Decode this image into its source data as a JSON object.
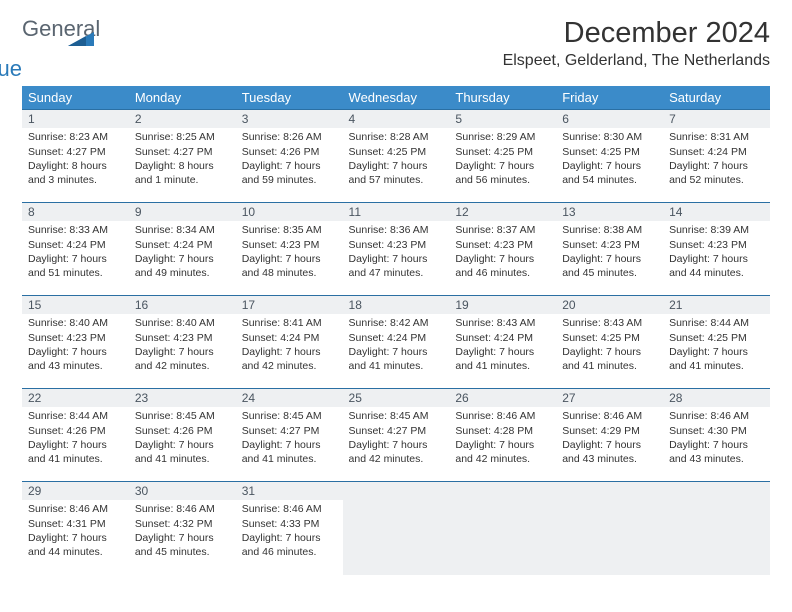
{
  "logo": {
    "word1": "General",
    "word2": "Blue"
  },
  "title": "December 2024",
  "location": "Elspeet, Gelderland, The Netherlands",
  "colors": {
    "header_bg": "#3b8bc9",
    "header_text": "#ffffff",
    "daynum_bg": "#eef0f2",
    "border": "#2a6fa3",
    "logo_gray": "#5a6570",
    "logo_blue": "#2a7ab9"
  },
  "weekdays": [
    "Sunday",
    "Monday",
    "Tuesday",
    "Wednesday",
    "Thursday",
    "Friday",
    "Saturday"
  ],
  "weeks": [
    [
      {
        "n": "1",
        "sunrise": "Sunrise: 8:23 AM",
        "sunset": "Sunset: 4:27 PM",
        "daylight": "Daylight: 8 hours and 3 minutes."
      },
      {
        "n": "2",
        "sunrise": "Sunrise: 8:25 AM",
        "sunset": "Sunset: 4:27 PM",
        "daylight": "Daylight: 8 hours and 1 minute."
      },
      {
        "n": "3",
        "sunrise": "Sunrise: 8:26 AM",
        "sunset": "Sunset: 4:26 PM",
        "daylight": "Daylight: 7 hours and 59 minutes."
      },
      {
        "n": "4",
        "sunrise": "Sunrise: 8:28 AM",
        "sunset": "Sunset: 4:25 PM",
        "daylight": "Daylight: 7 hours and 57 minutes."
      },
      {
        "n": "5",
        "sunrise": "Sunrise: 8:29 AM",
        "sunset": "Sunset: 4:25 PM",
        "daylight": "Daylight: 7 hours and 56 minutes."
      },
      {
        "n": "6",
        "sunrise": "Sunrise: 8:30 AM",
        "sunset": "Sunset: 4:25 PM",
        "daylight": "Daylight: 7 hours and 54 minutes."
      },
      {
        "n": "7",
        "sunrise": "Sunrise: 8:31 AM",
        "sunset": "Sunset: 4:24 PM",
        "daylight": "Daylight: 7 hours and 52 minutes."
      }
    ],
    [
      {
        "n": "8",
        "sunrise": "Sunrise: 8:33 AM",
        "sunset": "Sunset: 4:24 PM",
        "daylight": "Daylight: 7 hours and 51 minutes."
      },
      {
        "n": "9",
        "sunrise": "Sunrise: 8:34 AM",
        "sunset": "Sunset: 4:24 PM",
        "daylight": "Daylight: 7 hours and 49 minutes."
      },
      {
        "n": "10",
        "sunrise": "Sunrise: 8:35 AM",
        "sunset": "Sunset: 4:23 PM",
        "daylight": "Daylight: 7 hours and 48 minutes."
      },
      {
        "n": "11",
        "sunrise": "Sunrise: 8:36 AM",
        "sunset": "Sunset: 4:23 PM",
        "daylight": "Daylight: 7 hours and 47 minutes."
      },
      {
        "n": "12",
        "sunrise": "Sunrise: 8:37 AM",
        "sunset": "Sunset: 4:23 PM",
        "daylight": "Daylight: 7 hours and 46 minutes."
      },
      {
        "n": "13",
        "sunrise": "Sunrise: 8:38 AM",
        "sunset": "Sunset: 4:23 PM",
        "daylight": "Daylight: 7 hours and 45 minutes."
      },
      {
        "n": "14",
        "sunrise": "Sunrise: 8:39 AM",
        "sunset": "Sunset: 4:23 PM",
        "daylight": "Daylight: 7 hours and 44 minutes."
      }
    ],
    [
      {
        "n": "15",
        "sunrise": "Sunrise: 8:40 AM",
        "sunset": "Sunset: 4:23 PM",
        "daylight": "Daylight: 7 hours and 43 minutes."
      },
      {
        "n": "16",
        "sunrise": "Sunrise: 8:40 AM",
        "sunset": "Sunset: 4:23 PM",
        "daylight": "Daylight: 7 hours and 42 minutes."
      },
      {
        "n": "17",
        "sunrise": "Sunrise: 8:41 AM",
        "sunset": "Sunset: 4:24 PM",
        "daylight": "Daylight: 7 hours and 42 minutes."
      },
      {
        "n": "18",
        "sunrise": "Sunrise: 8:42 AM",
        "sunset": "Sunset: 4:24 PM",
        "daylight": "Daylight: 7 hours and 41 minutes."
      },
      {
        "n": "19",
        "sunrise": "Sunrise: 8:43 AM",
        "sunset": "Sunset: 4:24 PM",
        "daylight": "Daylight: 7 hours and 41 minutes."
      },
      {
        "n": "20",
        "sunrise": "Sunrise: 8:43 AM",
        "sunset": "Sunset: 4:25 PM",
        "daylight": "Daylight: 7 hours and 41 minutes."
      },
      {
        "n": "21",
        "sunrise": "Sunrise: 8:44 AM",
        "sunset": "Sunset: 4:25 PM",
        "daylight": "Daylight: 7 hours and 41 minutes."
      }
    ],
    [
      {
        "n": "22",
        "sunrise": "Sunrise: 8:44 AM",
        "sunset": "Sunset: 4:26 PM",
        "daylight": "Daylight: 7 hours and 41 minutes."
      },
      {
        "n": "23",
        "sunrise": "Sunrise: 8:45 AM",
        "sunset": "Sunset: 4:26 PM",
        "daylight": "Daylight: 7 hours and 41 minutes."
      },
      {
        "n": "24",
        "sunrise": "Sunrise: 8:45 AM",
        "sunset": "Sunset: 4:27 PM",
        "daylight": "Daylight: 7 hours and 41 minutes."
      },
      {
        "n": "25",
        "sunrise": "Sunrise: 8:45 AM",
        "sunset": "Sunset: 4:27 PM",
        "daylight": "Daylight: 7 hours and 42 minutes."
      },
      {
        "n": "26",
        "sunrise": "Sunrise: 8:46 AM",
        "sunset": "Sunset: 4:28 PM",
        "daylight": "Daylight: 7 hours and 42 minutes."
      },
      {
        "n": "27",
        "sunrise": "Sunrise: 8:46 AM",
        "sunset": "Sunset: 4:29 PM",
        "daylight": "Daylight: 7 hours and 43 minutes."
      },
      {
        "n": "28",
        "sunrise": "Sunrise: 8:46 AM",
        "sunset": "Sunset: 4:30 PM",
        "daylight": "Daylight: 7 hours and 43 minutes."
      }
    ],
    [
      {
        "n": "29",
        "sunrise": "Sunrise: 8:46 AM",
        "sunset": "Sunset: 4:31 PM",
        "daylight": "Daylight: 7 hours and 44 minutes."
      },
      {
        "n": "30",
        "sunrise": "Sunrise: 8:46 AM",
        "sunset": "Sunset: 4:32 PM",
        "daylight": "Daylight: 7 hours and 45 minutes."
      },
      {
        "n": "31",
        "sunrise": "Sunrise: 8:46 AM",
        "sunset": "Sunset: 4:33 PM",
        "daylight": "Daylight: 7 hours and 46 minutes."
      },
      null,
      null,
      null,
      null
    ]
  ]
}
